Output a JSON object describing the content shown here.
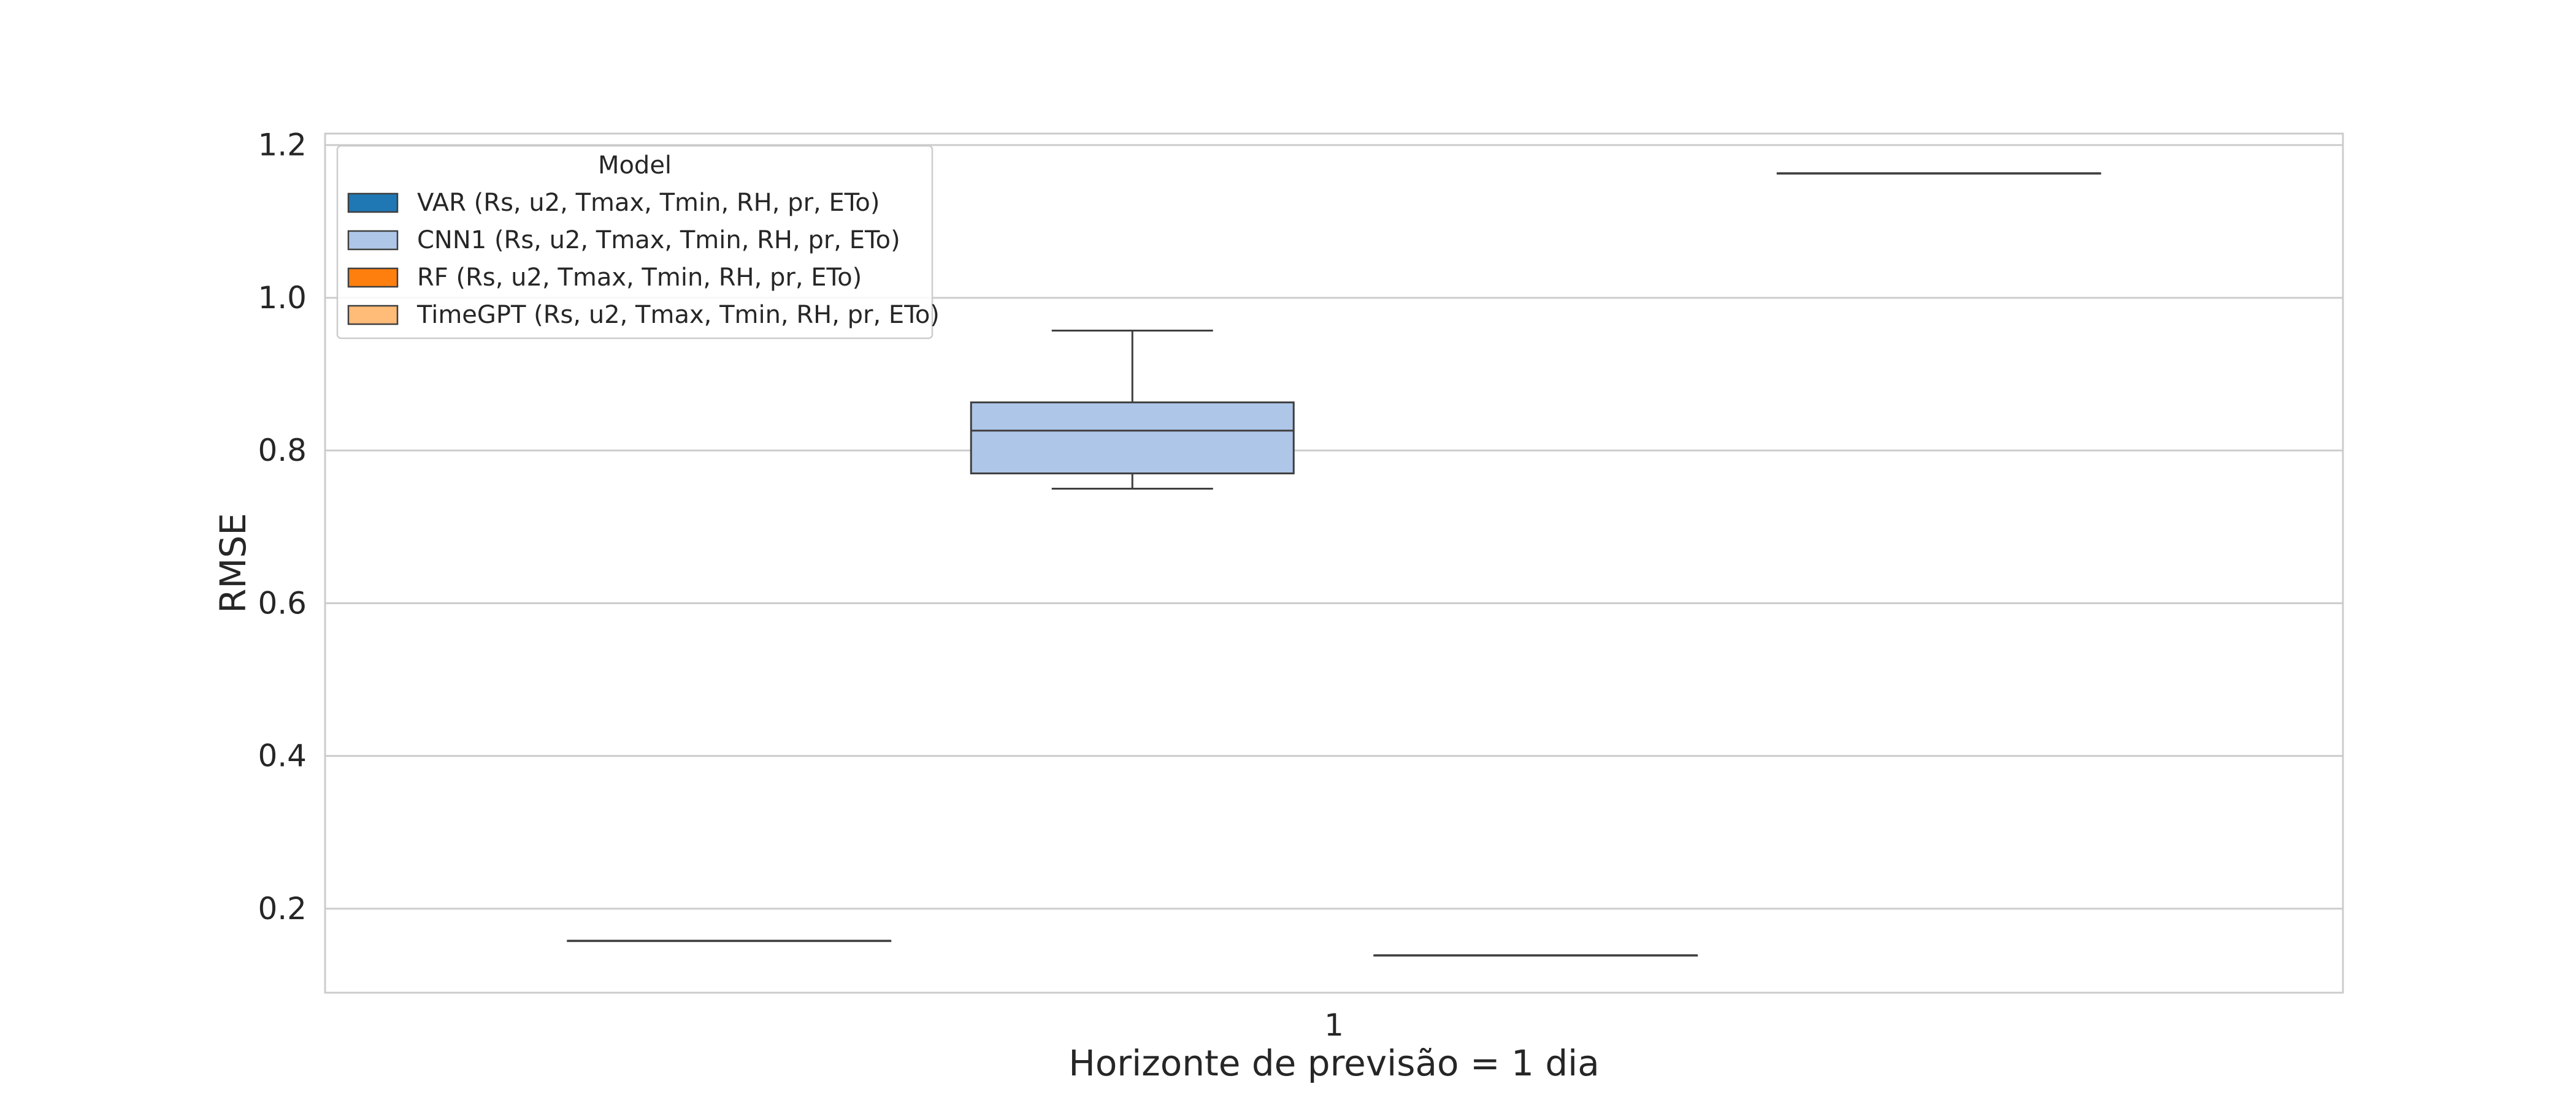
{
  "chart_data": {
    "type": "box",
    "xlabel": "Horizonte de previsão = 1 dia",
    "ylabel": "RMSE",
    "categories": [
      "1"
    ],
    "ylim": [
      0.09,
      1.215
    ],
    "yticks": [
      "0.2",
      "0.4",
      "0.6",
      "0.8",
      "1.0",
      "1.2"
    ],
    "grid": true,
    "legend": {
      "title": "Model",
      "position": "top-left"
    },
    "series": [
      {
        "name": "VAR (Rs, u2, Tmax, Tmin, RH, pr, ETo)",
        "color": "#1f77b4",
        "box": {
          "whislo": 0.158,
          "q1": 0.158,
          "med": 0.158,
          "q3": 0.158,
          "whishi": 0.158
        }
      },
      {
        "name": "CNN1 (Rs, u2, Tmax, Tmin, RH, pr, ETo)",
        "color": "#aec7e8",
        "box": {
          "whislo": 0.75,
          "q1": 0.77,
          "med": 0.826,
          "q3": 0.863,
          "whishi": 0.957
        }
      },
      {
        "name": "RF (Rs, u2, Tmax, Tmin, RH, pr, ETo)",
        "color": "#ff7f0e",
        "box": {
          "whislo": 0.139,
          "q1": 0.139,
          "med": 0.139,
          "q3": 0.139,
          "whishi": 0.139
        }
      },
      {
        "name": "TimeGPT (Rs, u2, Tmax, Tmin, RH, pr, ETo)",
        "color": "#ffbb78",
        "box": {
          "whislo": 1.163,
          "q1": 1.163,
          "med": 1.163,
          "q3": 1.163,
          "whishi": 1.163
        }
      }
    ]
  }
}
